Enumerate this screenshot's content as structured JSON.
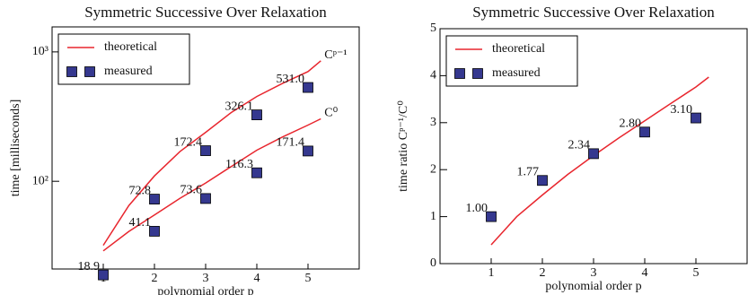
{
  "chart_data": [
    {
      "type": "line",
      "title": "Symmetric Successive Over Relaxation",
      "xlabel": "polynomial order p",
      "ylabel": "time [milliseconds]",
      "yscale": "log",
      "xlim": [
        0,
        6
      ],
      "ylim": [
        21,
        1560
      ],
      "xticks": [
        1,
        2,
        3,
        4,
        5
      ],
      "yticks": [
        {
          "value": 100,
          "label": "10²"
        },
        {
          "value": 1000,
          "label": "10³"
        }
      ],
      "legend": "upper left",
      "series": [
        {
          "name": "theoretical",
          "color": "#e8262e",
          "style": "line",
          "label": "Cᵖ⁻¹",
          "x": [
            1,
            1.5,
            2,
            2.5,
            3,
            3.5,
            4,
            4.5,
            5,
            5.25
          ],
          "values": [
            32,
            65,
            110,
            170,
            239,
            340,
            452,
            570,
            705,
            853
          ]
        },
        {
          "color": "#e8262e",
          "style": "line",
          "label": "C⁰",
          "x": [
            1,
            1.5,
            2,
            2.5,
            3,
            3.5,
            4,
            4.5,
            5,
            5.25
          ],
          "values": [
            29,
            41,
            55,
            74,
            97,
            130,
            174,
            220,
            272,
            304
          ]
        },
        {
          "name": "measured",
          "color": "#35388f",
          "style": "marker",
          "x": [
            1,
            2,
            3,
            4,
            5
          ],
          "values": [
            18.9,
            72.8,
            172.4,
            326.1,
            531.0
          ],
          "value_labels": [
            "18.9",
            "72.8",
            "172.4",
            "326.1",
            "531.0"
          ]
        },
        {
          "color": "#35388f",
          "style": "marker",
          "x": [
            2,
            3,
            4,
            5
          ],
          "values": [
            41.1,
            73.6,
            116.3,
            171.4
          ],
          "value_labels": [
            "41.1",
            "73.6",
            "116.3",
            "171.4"
          ]
        }
      ]
    },
    {
      "type": "line",
      "title": "Symmetric Successive Over Relaxation",
      "xlabel": "polynomial order p",
      "ylabel": "time ratio Cᵖ⁻¹/C⁰",
      "xlim": [
        0,
        6
      ],
      "ylim": [
        0,
        5
      ],
      "xticks": [
        1,
        2,
        3,
        4,
        5
      ],
      "yticks": [
        0,
        1,
        2,
        3,
        4,
        5
      ],
      "legend": "upper left",
      "series": [
        {
          "name": "theoretical",
          "color": "#e8262e",
          "style": "line",
          "x": [
            1,
            1.5,
            2,
            2.5,
            3,
            3.5,
            4,
            4.5,
            5,
            5.25
          ],
          "values": [
            0.4,
            1.0,
            1.46,
            1.9,
            2.3,
            2.68,
            3.04,
            3.4,
            3.76,
            3.97
          ]
        },
        {
          "name": "measured",
          "color": "#35388f",
          "style": "marker",
          "x": [
            1,
            2,
            3,
            4,
            5
          ],
          "values": [
            1.0,
            1.77,
            2.34,
            2.8,
            3.1
          ],
          "value_labels": [
            "1.00",
            "1.77",
            "2.34",
            "2.80",
            "3.10"
          ]
        }
      ]
    }
  ]
}
